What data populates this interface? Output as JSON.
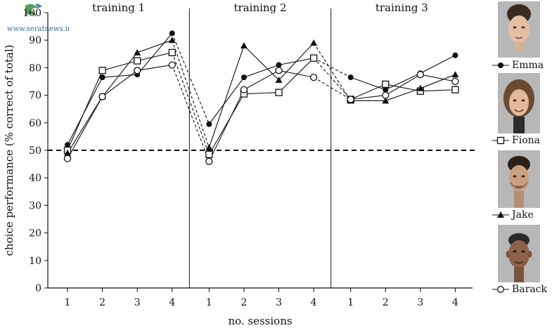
{
  "watermark": {
    "text": "www.seratnews.ir"
  },
  "chart_data": {
    "type": "line",
    "ylabel": "choice performance (% correct of total)",
    "xlabel": "no. sessions",
    "ylim": [
      0,
      100
    ],
    "yticks": [
      0,
      10,
      20,
      30,
      40,
      50,
      60,
      70,
      80,
      90,
      100
    ],
    "chance_level": 50,
    "blocks": [
      {
        "title": "training 1",
        "sessions": [
          "1",
          "2",
          "3",
          "4"
        ]
      },
      {
        "title": "training 2",
        "sessions": [
          "1",
          "2",
          "3",
          "4"
        ]
      },
      {
        "title": "training 3",
        "sessions": [
          "1",
          "2",
          "3",
          "4"
        ]
      }
    ],
    "legend_position": "right",
    "series": [
      {
        "name": "Emma",
        "marker": "filled-circle",
        "values": [
          [
            52,
            76.5,
            77.5,
            92.5
          ],
          [
            59.5,
            76.5,
            81,
            83.5
          ],
          [
            76.5,
            72,
            78,
            84.5
          ]
        ]
      },
      {
        "name": "Fiona",
        "marker": "open-square",
        "values": [
          [
            50,
            79,
            82.5,
            85.5
          ],
          [
            48.5,
            70.5,
            71,
            83.5
          ],
          [
            68.5,
            74,
            71.5,
            72
          ]
        ]
      },
      {
        "name": "Jake",
        "marker": "filled-triangle",
        "values": [
          [
            49,
            69.5,
            85.5,
            90
          ],
          [
            51,
            88,
            75.5,
            89
          ],
          [
            68,
            68,
            72.5,
            77.5
          ]
        ]
      },
      {
        "name": "Barack",
        "marker": "open-circle",
        "values": [
          [
            47,
            69.5,
            79,
            81
          ],
          [
            46,
            72,
            79,
            76.5
          ],
          [
            68.5,
            70,
            77.5,
            75
          ]
        ]
      }
    ]
  }
}
